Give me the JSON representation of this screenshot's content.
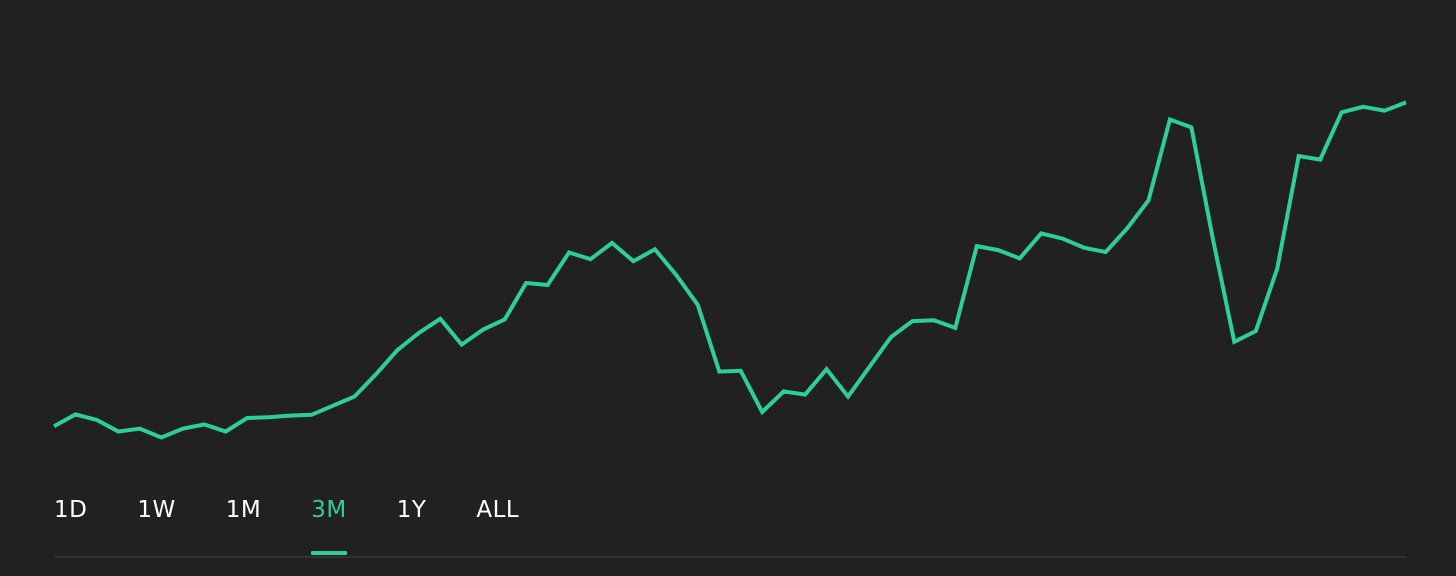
{
  "colors": {
    "background": "#212124",
    "accent": "#2ecf96",
    "tab_text": "#ffffff",
    "divider": "#323236"
  },
  "range_tabs": {
    "items": [
      {
        "label": "1D",
        "active": false
      },
      {
        "label": "1W",
        "active": false
      },
      {
        "label": "1M",
        "active": false
      },
      {
        "label": "3M",
        "active": true
      },
      {
        "label": "1Y",
        "active": false
      },
      {
        "label": "ALL",
        "active": false
      }
    ]
  },
  "chart_data": {
    "type": "line",
    "axes_visible": false,
    "grid": false,
    "legend": "none",
    "ylim": [
      0,
      100
    ],
    "series": [
      {
        "color": "#2ecf96",
        "values": [
          4.7,
          7.7,
          6.3,
          3.4,
          4.1,
          1.9,
          4.1,
          5.2,
          3.4,
          6.8,
          7.0,
          7.4,
          7.6,
          9.9,
          12.2,
          17.8,
          23.9,
          28.2,
          31.8,
          25.3,
          29.1,
          31.6,
          40.8,
          40.3,
          48.5,
          46.8,
          50.9,
          46.3,
          49.3,
          42.8,
          35.3,
          18.5,
          18.7,
          8.3,
          13.5,
          12.7,
          19.1,
          12.2,
          19.7,
          27.2,
          31.2,
          31.4,
          29.5,
          50.1,
          49.1,
          47.0,
          53.3,
          52.0,
          49.7,
          48.6,
          54.5,
          61.6,
          82.0,
          80.0,
          51.9,
          26.0,
          28.7,
          44.4,
          72.8,
          71.9,
          83.8,
          85.2,
          84.2,
          86.3
        ]
      }
    ]
  }
}
